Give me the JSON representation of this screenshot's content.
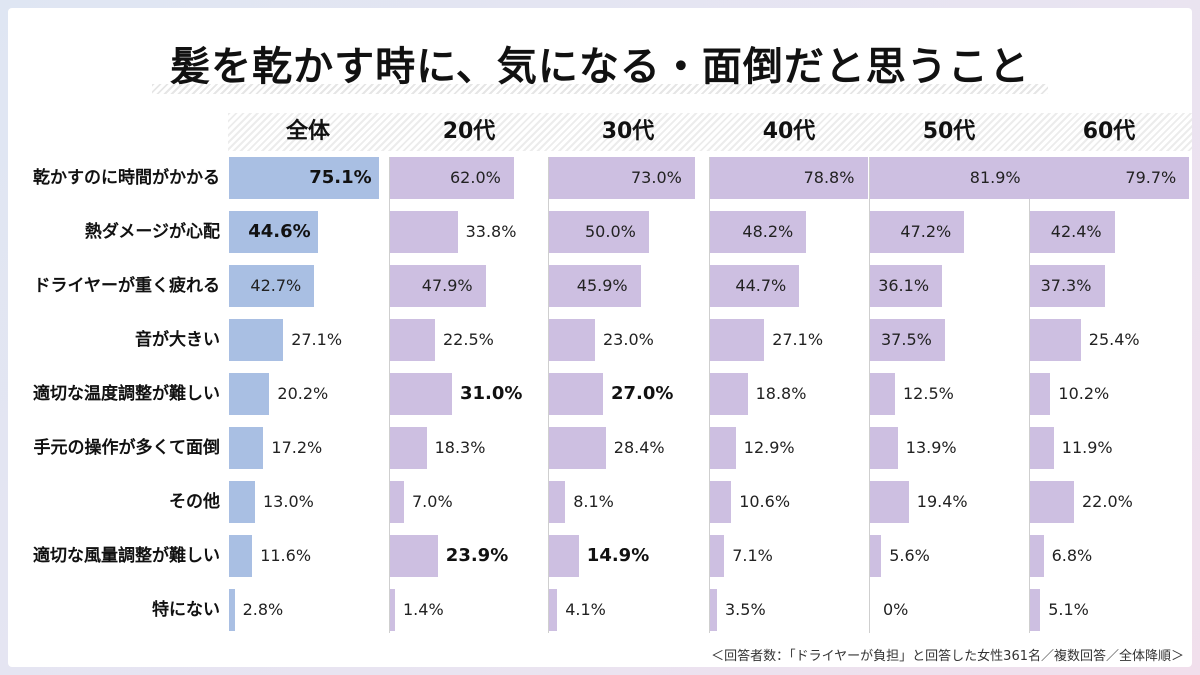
{
  "chart_data": {
    "type": "bar",
    "title": "髪を乾かす時に、気になる・面倒だと思うこと",
    "columns": [
      "全体",
      "20代",
      "30代",
      "40代",
      "50代",
      "60代"
    ],
    "categories": [
      "乾かすのに時間がかかる",
      "熱ダメージが心配",
      "ドライヤーが重く疲れる",
      "音が大きい",
      "適切な温度調整が難しい",
      "手元の操作が多くて面倒",
      "その他",
      "適切な風量調整が難しい",
      "特にない"
    ],
    "series": [
      {
        "name": "全体",
        "values": [
          75.1,
          44.6,
          42.7,
          27.1,
          20.2,
          17.2,
          13.0,
          11.6,
          2.8
        ],
        "labels": [
          "75.1%",
          "44.6%",
          "42.7%",
          "27.1%",
          "20.2%",
          "17.2%",
          "13.0%",
          "11.6%",
          "2.8%"
        ],
        "highlight": [
          true,
          true,
          false,
          false,
          false,
          false,
          false,
          false,
          false
        ]
      },
      {
        "name": "20代",
        "values": [
          62.0,
          33.8,
          47.9,
          22.5,
          31.0,
          18.3,
          7.0,
          23.9,
          1.4
        ],
        "labels": [
          "62.0%",
          "33.8%",
          "47.9%",
          "22.5%",
          "31.0%",
          "18.3%",
          "7.0%",
          "23.9%",
          "1.4%"
        ],
        "highlight": [
          false,
          false,
          false,
          false,
          true,
          false,
          false,
          true,
          false
        ]
      },
      {
        "name": "30代",
        "values": [
          73.0,
          50.0,
          45.9,
          23.0,
          27.0,
          28.4,
          8.1,
          14.9,
          4.1
        ],
        "labels": [
          "73.0%",
          "50.0%",
          "45.9%",
          "23.0%",
          "27.0%",
          "28.4%",
          "8.1%",
          "14.9%",
          "4.1%"
        ],
        "highlight": [
          false,
          false,
          false,
          false,
          true,
          false,
          false,
          true,
          false
        ]
      },
      {
        "name": "40代",
        "values": [
          78.8,
          48.2,
          44.7,
          27.1,
          18.8,
          12.9,
          10.6,
          7.1,
          3.5
        ],
        "labels": [
          "78.8%",
          "48.2%",
          "44.7%",
          "27.1%",
          "18.8%",
          "12.9%",
          "10.6%",
          "7.1%",
          "3.5%"
        ],
        "highlight": [
          false,
          false,
          false,
          false,
          false,
          false,
          false,
          false,
          false
        ]
      },
      {
        "name": "50代",
        "values": [
          81.9,
          47.2,
          36.1,
          37.5,
          12.5,
          13.9,
          19.4,
          5.6,
          0
        ],
        "labels": [
          "81.9%",
          "47.2%",
          "36.1%",
          "37.5%",
          "12.5%",
          "13.9%",
          "19.4%",
          "5.6%",
          "0%"
        ],
        "highlight": [
          false,
          false,
          false,
          false,
          false,
          false,
          false,
          false,
          false
        ]
      },
      {
        "name": "60代",
        "values": [
          79.7,
          42.4,
          37.3,
          25.4,
          10.2,
          11.9,
          22.0,
          6.8,
          5.1
        ],
        "labels": [
          "79.7%",
          "42.4%",
          "37.3%",
          "25.4%",
          "10.2%",
          "11.9%",
          "22.0%",
          "6.8%",
          "5.1%"
        ],
        "highlight": [
          false,
          false,
          false,
          false,
          false,
          false,
          false,
          false,
          false
        ]
      }
    ],
    "colors": {
      "total": "#a9bfe3",
      "age": "#cdbfe1"
    },
    "xlim": [
      0,
      80
    ]
  },
  "footnote": "＜回答者数：「ドライヤーが負担」と回答した女性361名／複数回答／全体降順＞"
}
